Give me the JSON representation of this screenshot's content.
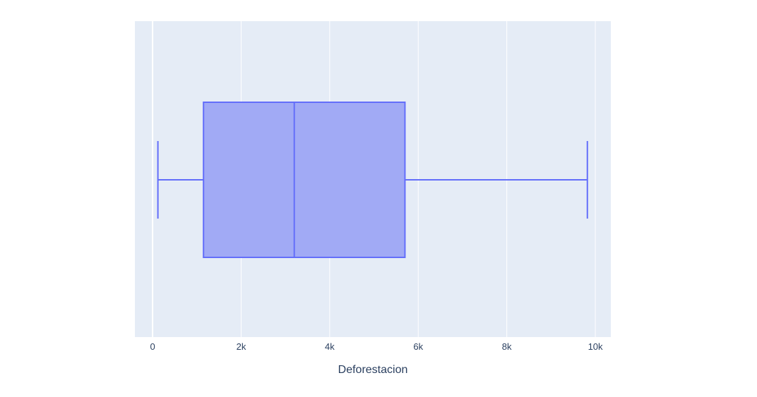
{
  "chart_data": {
    "type": "box",
    "orientation": "horizontal",
    "xlabel": "Deforestacion",
    "xlim": [
      -400,
      10350
    ],
    "x_ticks": [
      {
        "value": 0,
        "label": "0"
      },
      {
        "value": 2000,
        "label": "2k"
      },
      {
        "value": 4000,
        "label": "4k"
      },
      {
        "value": 6000,
        "label": "6k"
      },
      {
        "value": 8000,
        "label": "8k"
      },
      {
        "value": 10000,
        "label": "10k"
      }
    ],
    "grid": true,
    "box": {
      "min": 120,
      "q1": 1150,
      "median": 3200,
      "q3": 5700,
      "max": 9820
    },
    "colors": {
      "plot_background": "#E5ECF6",
      "grid": "#ffffff",
      "box_line": "#636EFA",
      "box_fill": "#A1AAF5",
      "tick_text": "#2A3F5F",
      "axis_title": "#2A3F5F"
    }
  }
}
